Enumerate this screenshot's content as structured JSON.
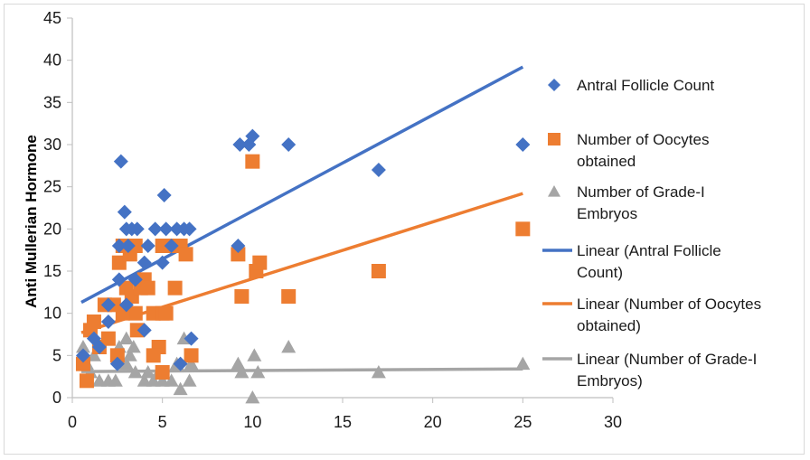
{
  "chart_data": {
    "type": "scatter",
    "title": "",
    "xlabel": "",
    "ylabel": "Anti  Mullerian Hormone",
    "xlim": [
      0,
      30
    ],
    "ylim": [
      0,
      45
    ],
    "x_ticks": [
      "0",
      "5",
      "10",
      "15",
      "20",
      "25",
      "30"
    ],
    "y_ticks": [
      "0",
      "5",
      "10",
      "15",
      "20",
      "25",
      "30",
      "35",
      "40",
      "45"
    ],
    "grid": false,
    "legend_position": "right",
    "series": [
      {
        "name": "Antral Follicle Count",
        "marker": "diamond",
        "color": "#4472C4",
        "points": [
          [
            2.7,
            28
          ],
          [
            2.9,
            22
          ],
          [
            3.0,
            20
          ],
          [
            3.3,
            20
          ],
          [
            3.6,
            20
          ],
          [
            2.6,
            18
          ],
          [
            3.1,
            18
          ],
          [
            4.2,
            18
          ],
          [
            4.6,
            20
          ],
          [
            5.2,
            20
          ],
          [
            5.8,
            20
          ],
          [
            6.2,
            20
          ],
          [
            6.5,
            20
          ],
          [
            5.1,
            24
          ],
          [
            5.5,
            18
          ],
          [
            4.0,
            16
          ],
          [
            5.0,
            16
          ],
          [
            3.5,
            14
          ],
          [
            2.6,
            14
          ],
          [
            2.0,
            11
          ],
          [
            3.0,
            11
          ],
          [
            4.0,
            8
          ],
          [
            2.0,
            9
          ],
          [
            1.2,
            7
          ],
          [
            0.6,
            5
          ],
          [
            1.5,
            6
          ],
          [
            2.5,
            4
          ],
          [
            6.6,
            7
          ],
          [
            6.0,
            4
          ],
          [
            9.2,
            18
          ],
          [
            9.3,
            30
          ],
          [
            9.8,
            30
          ],
          [
            10.0,
            31
          ],
          [
            12.0,
            30
          ],
          [
            17.0,
            27
          ],
          [
            25.0,
            30
          ]
        ]
      },
      {
        "name": "Number of Oocytes obtained",
        "marker": "square",
        "color": "#ED7D31",
        "points": [
          [
            0.6,
            4
          ],
          [
            0.8,
            2
          ],
          [
            1.0,
            8
          ],
          [
            1.2,
            9
          ],
          [
            1.5,
            6
          ],
          [
            1.8,
            11
          ],
          [
            2.0,
            7
          ],
          [
            2.3,
            11
          ],
          [
            2.5,
            5
          ],
          [
            2.6,
            16
          ],
          [
            2.8,
            18
          ],
          [
            3.0,
            18
          ],
          [
            3.2,
            17
          ],
          [
            3.5,
            18
          ],
          [
            3.0,
            13
          ],
          [
            3.3,
            12
          ],
          [
            3.5,
            10
          ],
          [
            3.8,
            13
          ],
          [
            2.8,
            10
          ],
          [
            4.0,
            14
          ],
          [
            4.2,
            13
          ],
          [
            4.5,
            10
          ],
          [
            5.0,
            10
          ],
          [
            5.2,
            10
          ],
          [
            4.8,
            6
          ],
          [
            4.5,
            5
          ],
          [
            3.6,
            8
          ],
          [
            5.0,
            18
          ],
          [
            5.5,
            18
          ],
          [
            6.0,
            18
          ],
          [
            6.3,
            17
          ],
          [
            5.7,
            13
          ],
          [
            5.0,
            3
          ],
          [
            6.6,
            5
          ],
          [
            9.2,
            17
          ],
          [
            9.4,
            12
          ],
          [
            10.0,
            28
          ],
          [
            10.2,
            15
          ],
          [
            10.4,
            16
          ],
          [
            12.0,
            12
          ],
          [
            17.0,
            15
          ],
          [
            25.0,
            20
          ]
        ]
      },
      {
        "name": "Number of Grade-I Embryos",
        "marker": "triangle",
        "color": "#A5A5A5",
        "points": [
          [
            0.6,
            6
          ],
          [
            0.8,
            4
          ],
          [
            1.0,
            3
          ],
          [
            1.2,
            5
          ],
          [
            1.5,
            2
          ],
          [
            2.0,
            2
          ],
          [
            2.4,
            2
          ],
          [
            2.6,
            6
          ],
          [
            3.0,
            4
          ],
          [
            3.0,
            7
          ],
          [
            3.2,
            5
          ],
          [
            3.4,
            6
          ],
          [
            3.5,
            3
          ],
          [
            4.0,
            2
          ],
          [
            4.2,
            3
          ],
          [
            4.5,
            2
          ],
          [
            4.8,
            3
          ],
          [
            5.0,
            2
          ],
          [
            5.5,
            2
          ],
          [
            5.8,
            4
          ],
          [
            6.0,
            1
          ],
          [
            6.2,
            7
          ],
          [
            6.5,
            2
          ],
          [
            6.6,
            4
          ],
          [
            9.2,
            4
          ],
          [
            9.4,
            3
          ],
          [
            10.0,
            0
          ],
          [
            10.1,
            5
          ],
          [
            10.3,
            3
          ],
          [
            12.0,
            6
          ],
          [
            17.0,
            3
          ],
          [
            25.0,
            4
          ]
        ]
      },
      {
        "name": "Linear (Antral Follicle Count)",
        "type": "line",
        "color": "#4472C4",
        "x": [
          0.5,
          25
        ],
        "y": [
          11.3,
          39.2
        ]
      },
      {
        "name": "Linear (Number of Oocytes obtained)",
        "type": "line",
        "color": "#ED7D31",
        "x": [
          0.5,
          25
        ],
        "y": [
          7.7,
          24.2
        ]
      },
      {
        "name": "Linear (Number of Grade-I Embryos)",
        "type": "line",
        "color": "#A5A5A5",
        "x": [
          0.5,
          25
        ],
        "y": [
          3.1,
          3.4
        ]
      }
    ],
    "legend": [
      {
        "symbol": "diamond",
        "color": "#4472C4",
        "lines": [
          "Antral Follicle Count"
        ]
      },
      {
        "symbol": "square",
        "color": "#ED7D31",
        "lines": [
          "Number of Oocytes",
          "obtained"
        ]
      },
      {
        "symbol": "triangle",
        "color": "#A5A5A5",
        "lines": [
          "Number of Grade-I",
          "Embryos"
        ]
      },
      {
        "symbol": "line",
        "color": "#4472C4",
        "lines": [
          "Linear (Antral Follicle",
          "Count)"
        ]
      },
      {
        "symbol": "line",
        "color": "#ED7D31",
        "lines": [
          "Linear (Number of Oocytes",
          "obtained)"
        ]
      },
      {
        "symbol": "line",
        "color": "#A5A5A5",
        "lines": [
          "Linear (Number of Grade-I",
          "Embryos)"
        ]
      }
    ]
  }
}
